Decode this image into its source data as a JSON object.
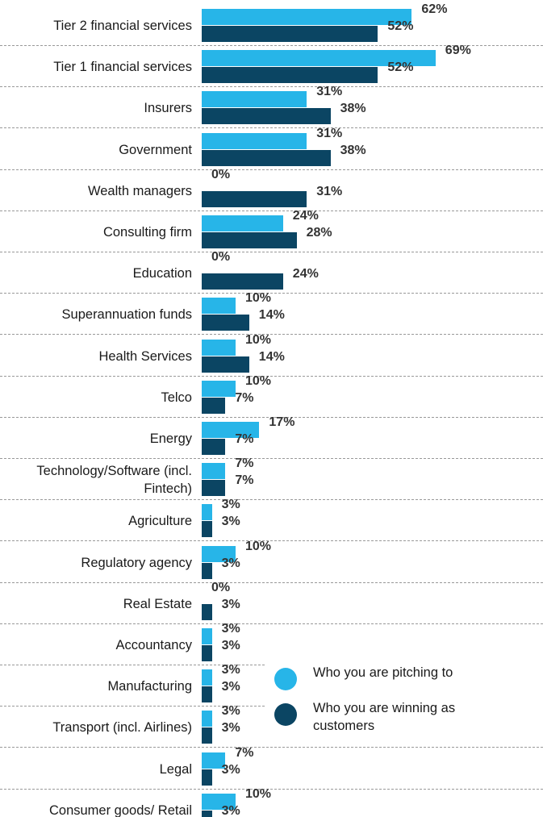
{
  "chart_data": {
    "type": "bar",
    "orientation": "horizontal",
    "categories": [
      "Tier 2 financial services",
      "Tier 1 financial services",
      "Insurers",
      "Government",
      "Wealth managers",
      "Consulting firm",
      "Education",
      "Superannuation funds",
      "Health Services",
      "Telco",
      "Energy",
      "Technology/Software (incl. Fintech)",
      "Agriculture",
      "Regulatory agency",
      "Real Estate",
      "Accountancy",
      "Manufacturing",
      "Transport (incl. Airlines)",
      "Legal",
      "Consumer goods/ Retail"
    ],
    "series": [
      {
        "name": "Who you are pitching to",
        "color": "#27b5e8",
        "values": [
          62,
          69,
          31,
          31,
          0,
          24,
          0,
          10,
          10,
          10,
          17,
          7,
          3,
          10,
          0,
          3,
          3,
          3,
          7,
          10
        ],
        "value_labels": [
          "62%",
          "69%",
          "31%",
          "31%",
          "0%",
          "24%",
          "0%",
          "10%",
          "10%",
          "10%",
          "17%",
          "7%",
          "3%",
          "10%",
          "0%",
          "3%",
          "3%",
          "3%",
          "7%",
          "10%"
        ]
      },
      {
        "name": "Who you are winning as customers",
        "color": "#0b4563",
        "values": [
          52,
          52,
          38,
          38,
          31,
          28,
          24,
          14,
          14,
          7,
          7,
          7,
          3,
          3,
          3,
          3,
          3,
          3,
          3,
          3
        ],
        "value_labels": [
          "52%",
          "52%",
          "38%",
          "38%",
          "31%",
          "28%",
          "24%",
          "14%",
          "14%",
          "7%",
          "7%",
          "7%",
          "3%",
          "3%",
          "3%",
          "3%",
          "3%",
          "3%",
          "3%",
          "3%"
        ]
      }
    ]
  }
}
